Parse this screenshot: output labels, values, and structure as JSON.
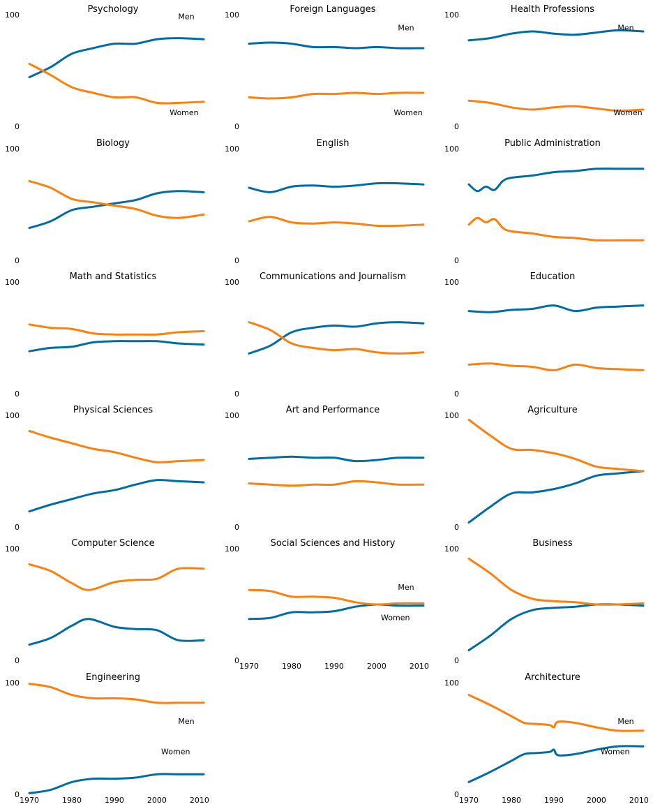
{
  "colors": {
    "men": "#006BA4",
    "women": "#FF800E"
  },
  "y_ticks": [
    "0",
    "100"
  ],
  "x_ticks": [
    "1970",
    "1980",
    "1990",
    "2000",
    "2010"
  ],
  "chart_data": [
    {
      "type": "line",
      "title": "Psychology",
      "ylim": [
        0,
        100
      ],
      "xlim": [
        1970,
        2011
      ],
      "x": [
        1970,
        1975,
        1980,
        1985,
        1990,
        1995,
        2000,
        2005,
        2011
      ],
      "series": [
        {
          "name": "Men",
          "values": [
            44,
            53,
            65,
            70,
            74,
            74,
            78,
            79,
            78
          ]
        },
        {
          "name": "Women",
          "values": [
            56,
            46,
            35,
            30,
            26,
            26,
            21,
            21,
            22
          ]
        }
      ],
      "labels": {
        "men": "Men",
        "women": "Women"
      }
    },
    {
      "type": "line",
      "title": "Foreign Languages",
      "ylim": [
        0,
        100
      ],
      "xlim": [
        1970,
        2011
      ],
      "x": [
        1970,
        1975,
        1980,
        1985,
        1990,
        1995,
        2000,
        2005,
        2011
      ],
      "series": [
        {
          "name": "Men",
          "values": [
            74,
            75,
            74,
            71,
            71,
            70,
            71,
            70,
            70
          ]
        },
        {
          "name": "Women",
          "values": [
            26,
            25,
            26,
            29,
            29,
            30,
            29,
            30,
            30
          ]
        }
      ],
      "labels": {
        "men": "Men",
        "women": "Women"
      }
    },
    {
      "type": "line",
      "title": "Health Professions",
      "ylim": [
        0,
        100
      ],
      "xlim": [
        1970,
        2011
      ],
      "x": [
        1970,
        1975,
        1980,
        1985,
        1990,
        1995,
        2000,
        2005,
        2011
      ],
      "series": [
        {
          "name": "Men",
          "values": [
            77,
            79,
            83,
            85,
            83,
            82,
            84,
            86,
            85
          ]
        },
        {
          "name": "Women",
          "values": [
            23,
            21,
            17,
            15,
            17,
            18,
            16,
            14,
            15
          ]
        }
      ],
      "labels": {
        "men": "Men",
        "women": "Women"
      }
    },
    {
      "type": "line",
      "title": "Biology",
      "ylim": [
        0,
        100
      ],
      "xlim": [
        1970,
        2011
      ],
      "x": [
        1970,
        1975,
        1980,
        1985,
        1990,
        1995,
        2000,
        2005,
        2011
      ],
      "series": [
        {
          "name": "Men",
          "values": [
            29,
            35,
            45,
            48,
            51,
            54,
            60,
            62,
            61
          ]
        },
        {
          "name": "Women",
          "values": [
            71,
            65,
            55,
            52,
            49,
            46,
            40,
            38,
            41
          ]
        }
      ]
    },
    {
      "type": "line",
      "title": "English",
      "ylim": [
        0,
        100
      ],
      "xlim": [
        1970,
        2011
      ],
      "x": [
        1970,
        1975,
        1980,
        1985,
        1990,
        1995,
        2000,
        2005,
        2011
      ],
      "series": [
        {
          "name": "Men",
          "values": [
            65,
            61,
            66,
            67,
            66,
            67,
            69,
            69,
            68
          ]
        },
        {
          "name": "Women",
          "values": [
            35,
            39,
            34,
            33,
            34,
            33,
            31,
            31,
            32
          ]
        }
      ]
    },
    {
      "type": "line",
      "title": "Public Administration",
      "ylim": [
        0,
        100
      ],
      "xlim": [
        1970,
        2011
      ],
      "x": [
        1970,
        1972,
        1974,
        1976,
        1978,
        1980,
        1985,
        1990,
        1995,
        2000,
        2005,
        2011
      ],
      "series": [
        {
          "name": "Men",
          "values": [
            68,
            62,
            66,
            63,
            71,
            74,
            76,
            79,
            80,
            82,
            82,
            82
          ]
        },
        {
          "name": "Women",
          "values": [
            32,
            38,
            34,
            37,
            29,
            26,
            24,
            21,
            20,
            18,
            18,
            18
          ]
        }
      ]
    },
    {
      "type": "line",
      "title": "Math and Statistics",
      "ylim": [
        0,
        100
      ],
      "xlim": [
        1970,
        2011
      ],
      "x": [
        1970,
        1975,
        1980,
        1985,
        1990,
        1995,
        2000,
        2005,
        2011
      ],
      "series": [
        {
          "name": "Men",
          "values": [
            38,
            41,
            42,
            46,
            47,
            47,
            47,
            45,
            44
          ]
        },
        {
          "name": "Women",
          "values": [
            62,
            59,
            58,
            54,
            53,
            53,
            53,
            55,
            56
          ]
        }
      ]
    },
    {
      "type": "line",
      "title": "Communications and Journalism",
      "ylim": [
        0,
        100
      ],
      "xlim": [
        1970,
        2011
      ],
      "x": [
        1970,
        1975,
        1980,
        1985,
        1990,
        1995,
        2000,
        2005,
        2011
      ],
      "series": [
        {
          "name": "Men",
          "values": [
            36,
            43,
            55,
            59,
            61,
            60,
            63,
            64,
            63
          ]
        },
        {
          "name": "Women",
          "values": [
            64,
            57,
            45,
            41,
            39,
            40,
            37,
            36,
            37
          ]
        }
      ]
    },
    {
      "type": "line",
      "title": "Education",
      "ylim": [
        0,
        100
      ],
      "xlim": [
        1970,
        2011
      ],
      "x": [
        1970,
        1975,
        1980,
        1985,
        1990,
        1995,
        2000,
        2005,
        2011
      ],
      "series": [
        {
          "name": "Men",
          "values": [
            74,
            73,
            75,
            76,
            79,
            74,
            77,
            78,
            79
          ]
        },
        {
          "name": "Women",
          "values": [
            26,
            27,
            25,
            24,
            21,
            26,
            23,
            22,
            21
          ]
        }
      ]
    },
    {
      "type": "line",
      "title": "Physical Sciences",
      "ylim": [
        0,
        100
      ],
      "xlim": [
        1970,
        2011
      ],
      "x": [
        1970,
        1975,
        1980,
        1985,
        1990,
        1995,
        2000,
        2005,
        2011
      ],
      "series": [
        {
          "name": "Men",
          "values": [
            14,
            20,
            25,
            30,
            33,
            38,
            42,
            41,
            40
          ]
        },
        {
          "name": "Women",
          "values": [
            86,
            80,
            75,
            70,
            67,
            62,
            58,
            59,
            60
          ]
        }
      ]
    },
    {
      "type": "line",
      "title": "Art and Performance",
      "ylim": [
        0,
        100
      ],
      "xlim": [
        1970,
        2011
      ],
      "x": [
        1970,
        1975,
        1980,
        1985,
        1990,
        1995,
        2000,
        2005,
        2011
      ],
      "series": [
        {
          "name": "Men",
          "values": [
            61,
            62,
            63,
            62,
            62,
            59,
            60,
            62,
            62
          ]
        },
        {
          "name": "Women",
          "values": [
            39,
            38,
            37,
            38,
            38,
            41,
            40,
            38,
            38
          ]
        }
      ]
    },
    {
      "type": "line",
      "title": "Agriculture",
      "ylim": [
        0,
        100
      ],
      "xlim": [
        1970,
        2011
      ],
      "x": [
        1970,
        1975,
        1980,
        1985,
        1990,
        1995,
        2000,
        2005,
        2011
      ],
      "series": [
        {
          "name": "Men",
          "values": [
            4,
            18,
            30,
            31,
            34,
            39,
            46,
            48,
            50
          ]
        },
        {
          "name": "Women",
          "values": [
            96,
            82,
            70,
            69,
            66,
            61,
            54,
            52,
            50
          ]
        }
      ]
    },
    {
      "type": "line",
      "title": "Computer Science",
      "ylim": [
        0,
        100
      ],
      "xlim": [
        1970,
        2011
      ],
      "x": [
        1970,
        1975,
        1980,
        1984,
        1990,
        1995,
        2000,
        2005,
        2011
      ],
      "series": [
        {
          "name": "Men",
          "values": [
            14,
            20,
            31,
            37,
            30,
            28,
            27,
            18,
            18
          ]
        },
        {
          "name": "Women",
          "values": [
            86,
            80,
            69,
            63,
            70,
            72,
            73,
            82,
            82
          ]
        }
      ]
    },
    {
      "type": "line",
      "title": "Social Sciences and History",
      "ylim": [
        0,
        100
      ],
      "xlim": [
        1970,
        2011
      ],
      "x": [
        1970,
        1975,
        1980,
        1985,
        1990,
        1995,
        2000,
        2005,
        2011
      ],
      "series": [
        {
          "name": "Men",
          "values": [
            37,
            38,
            43,
            43,
            44,
            48,
            50,
            49,
            49
          ]
        },
        {
          "name": "Women",
          "values": [
            63,
            62,
            57,
            57,
            56,
            52,
            50,
            51,
            51
          ]
        }
      ],
      "labels": {
        "men": "Men",
        "women": "Women"
      }
    },
    {
      "type": "line",
      "title": "Business",
      "ylim": [
        0,
        100
      ],
      "xlim": [
        1970,
        2011
      ],
      "x": [
        1970,
        1975,
        1980,
        1985,
        1990,
        1995,
        2000,
        2005,
        2011
      ],
      "series": [
        {
          "name": "Men",
          "values": [
            9,
            22,
            37,
            45,
            47,
            48,
            50,
            50,
            49
          ]
        },
        {
          "name": "Women",
          "values": [
            91,
            78,
            63,
            55,
            53,
            52,
            50,
            50,
            51
          ]
        }
      ]
    },
    {
      "type": "line",
      "title": "Engineering",
      "ylim": [
        0,
        100
      ],
      "xlim": [
        1970,
        2011
      ],
      "x": [
        1970,
        1975,
        1980,
        1985,
        1990,
        1995,
        2000,
        2005,
        2011
      ],
      "series": [
        {
          "name": "Men",
          "values": [
            1,
            4,
            11,
            14,
            14,
            15,
            18,
            18,
            18
          ]
        },
        {
          "name": "Women",
          "values": [
            99,
            96,
            89,
            86,
            86,
            85,
            82,
            82,
            82
          ]
        }
      ],
      "labels": {
        "men": "Men",
        "women": "Women"
      }
    },
    {
      "type": "line",
      "title": "Architecture",
      "ylim": [
        0,
        100
      ],
      "xlim": [
        1970,
        2011
      ],
      "x": [
        1970,
        1975,
        1980,
        1983,
        1986,
        1989,
        1990,
        1991,
        1995,
        2000,
        2005,
        2011
      ],
      "series": [
        {
          "name": "Men",
          "values": [
            11,
            20,
            30,
            36,
            37,
            38,
            40,
            35,
            36,
            40,
            43,
            43
          ],
          "smooth_x": [
            1970,
            1972,
            1974,
            1976,
            1978,
            1980,
            1982,
            1984,
            1986,
            1988,
            1990,
            1991,
            1993,
            1995,
            1997,
            2000,
            2003,
            2005,
            2008,
            2011
          ]
        },
        {
          "name": "Women",
          "values": [
            89,
            80,
            70,
            64,
            63,
            62,
            60,
            65,
            64,
            60,
            57,
            57
          ]
        }
      ],
      "labels": {
        "men": "Men",
        "women": "Women"
      }
    }
  ]
}
